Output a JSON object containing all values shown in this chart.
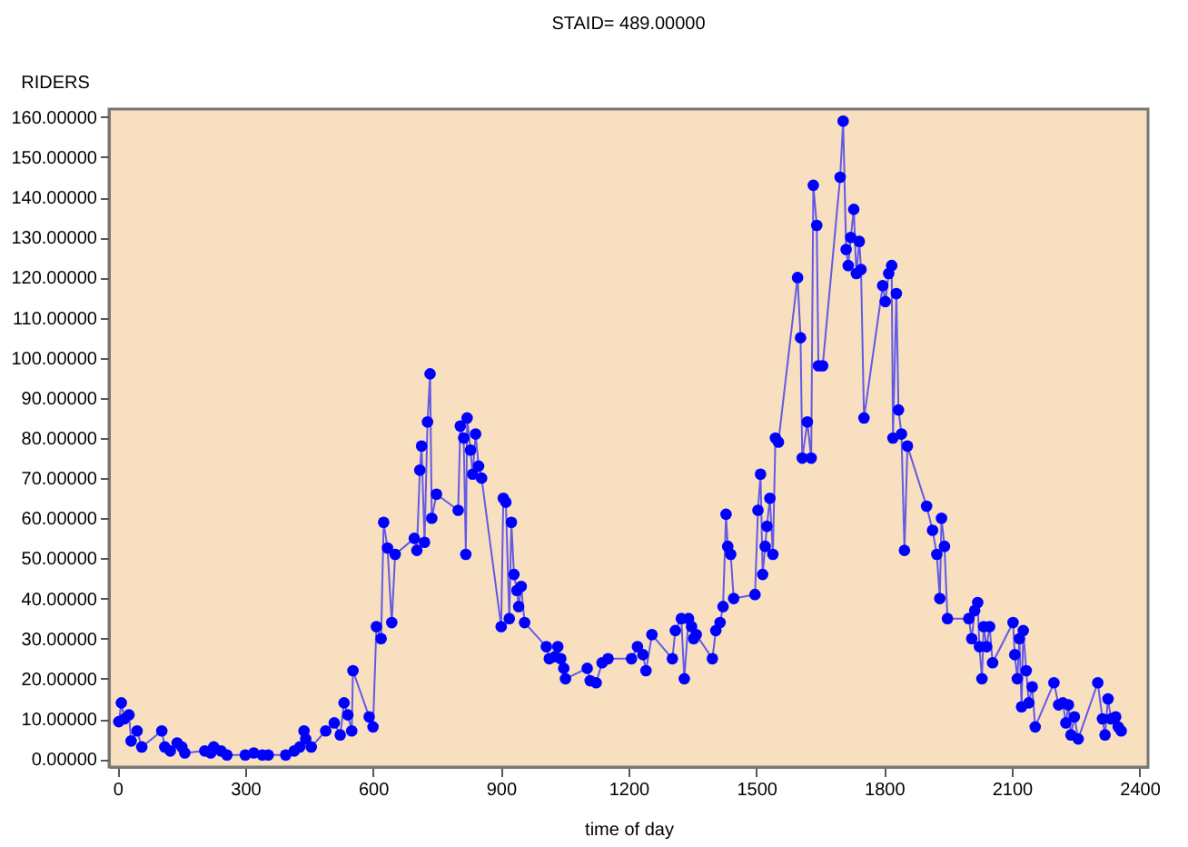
{
  "chart_data": {
    "type": "line",
    "title": "STAID= 489.00000",
    "xlabel": "time of day",
    "ylabel": "RIDERS",
    "marker": "circle",
    "grid": false,
    "xlim": [
      -20,
      2420
    ],
    "xticks": [
      0,
      300,
      600,
      900,
      {
        "value": 1200,
        "label": "1200"
      },
      {
        "value": 1500,
        "label": "1500"
      },
      {
        "value": 1800,
        "label": "1800"
      },
      {
        "value": 2100,
        "label": "2100"
      },
      {
        "value": 2400,
        "label": "2400"
      }
    ],
    "ylim": [
      -2,
      162
    ],
    "yticks": [
      {
        "value": 0,
        "label": "0.00000"
      },
      {
        "value": 10,
        "label": "10.00000"
      },
      {
        "value": 20,
        "label": "20.00000"
      },
      {
        "value": 30,
        "label": "30.00000"
      },
      {
        "value": 40,
        "label": "40.00000"
      },
      {
        "value": 50,
        "label": "50.00000"
      },
      {
        "value": 60,
        "label": "60.00000"
      },
      {
        "value": 70,
        "label": "70.00000"
      },
      {
        "value": 80,
        "label": "80.00000"
      },
      {
        "value": 90,
        "label": "90.00000"
      },
      {
        "value": 100,
        "label": "100.00000"
      },
      {
        "value": 110,
        "label": "110.00000"
      },
      {
        "value": 120,
        "label": "120.00000"
      },
      {
        "value": 130,
        "label": "130.00000"
      },
      {
        "value": 140,
        "label": "140.00000"
      },
      {
        "value": 150,
        "label": "150.00000"
      },
      {
        "value": 160,
        "label": "160.00000"
      }
    ],
    "x": [
      3,
      9,
      16,
      27,
      32,
      46,
      57,
      104,
      111,
      124,
      140,
      151,
      158,
      205,
      219,
      226,
      243,
      257,
      300,
      320,
      340,
      354,
      395,
      415,
      428,
      438,
      442,
      455,
      489,
      509,
      523,
      532,
      541,
      550,
      553,
      591,
      600,
      608,
      619,
      625,
      634,
      644,
      652,
      697,
      703,
      710,
      714,
      721,
      728,
      734,
      738,
      749,
      800,
      805,
      813,
      818,
      821,
      829,
      834,
      841,
      848,
      855,
      901,
      906,
      912,
      920,
      925,
      931,
      938,
      942,
      948,
      956,
      1007,
      1014,
      1027,
      1034,
      1041,
      1048,
      1052,
      1103,
      1110,
      1124,
      1138,
      1152,
      1207,
      1221,
      1234,
      1241,
      1255,
      1303,
      1310,
      1324,
      1331,
      1341,
      1348,
      1353,
      1359,
      1397,
      1405,
      1415,
      1422,
      1429,
      1433,
      1440,
      1447,
      1497,
      1504,
      1510,
      1515,
      1521,
      1525,
      1532,
      1539,
      1545,
      1552,
      1597,
      1604,
      1608,
      1620,
      1629,
      1634,
      1642,
      1646,
      1656,
      1697,
      1704,
      1711,
      1716,
      1722,
      1729,
      1735,
      1742,
      1746,
      1753,
      1797,
      1803,
      1811,
      1818,
      1821,
      1829,
      1834,
      1841,
      1848,
      1855,
      1900,
      1914,
      1924,
      1931,
      1935,
      1942,
      1949,
      1999,
      2006,
      2013,
      2020,
      2024,
      2030,
      2034,
      2041,
      2048,
      2055,
      2103,
      2107,
      2113,
      2118,
      2123,
      2127,
      2134,
      2140,
      2148,
      2155,
      2199,
      2210,
      2220,
      2227,
      2233,
      2239,
      2247,
      2256,
      2302,
      2313,
      2319,
      2326,
      2333,
      2344,
      2350,
      2357
    ],
    "series": [
      {
        "color": "#0000ff",
        "values": [
          9.3,
          14,
          10,
          11,
          4.5,
          7,
          3,
          7,
          3,
          2,
          4,
          3,
          1.5,
          2,
          1.5,
          3,
          2,
          1,
          1,
          1.5,
          1,
          1,
          1,
          2,
          3,
          7,
          5,
          3,
          7,
          9,
          6,
          14,
          11,
          7,
          22,
          10.5,
          8,
          33,
          30,
          59,
          52.6,
          34,
          51,
          55,
          52,
          72,
          78,
          54,
          84,
          96,
          60,
          66,
          62,
          83,
          80,
          51,
          85,
          77,
          71,
          81,
          73,
          70,
          33,
          65,
          64,
          35,
          59,
          46,
          42,
          38,
          43,
          34,
          28,
          25,
          25.5,
          28,
          25,
          22.6,
          20,
          22.6,
          19.5,
          19,
          24,
          25,
          25,
          28,
          26,
          22,
          31,
          25,
          32,
          35,
          20,
          35,
          33,
          30,
          31,
          25,
          32,
          34,
          38,
          61,
          53,
          51,
          40,
          41,
          62,
          71,
          46,
          53,
          58,
          65,
          51,
          80,
          79,
          120,
          105,
          75,
          84,
          75,
          143,
          133,
          98,
          98,
          145,
          159,
          127,
          123,
          130,
          137,
          121,
          129,
          122,
          85,
          118,
          114,
          121,
          123,
          80,
          116,
          87,
          81,
          52,
          78,
          63,
          57,
          51,
          40,
          60,
          53,
          35,
          35,
          30,
          37,
          39,
          28,
          20,
          33,
          28,
          33,
          24,
          34,
          26,
          20,
          30,
          13,
          32,
          22,
          14,
          18,
          8,
          19,
          13.5,
          14,
          9,
          13.5,
          6,
          10.5,
          5,
          19,
          10,
          6,
          15,
          10,
          10.5,
          8,
          7
        ]
      }
    ]
  }
}
